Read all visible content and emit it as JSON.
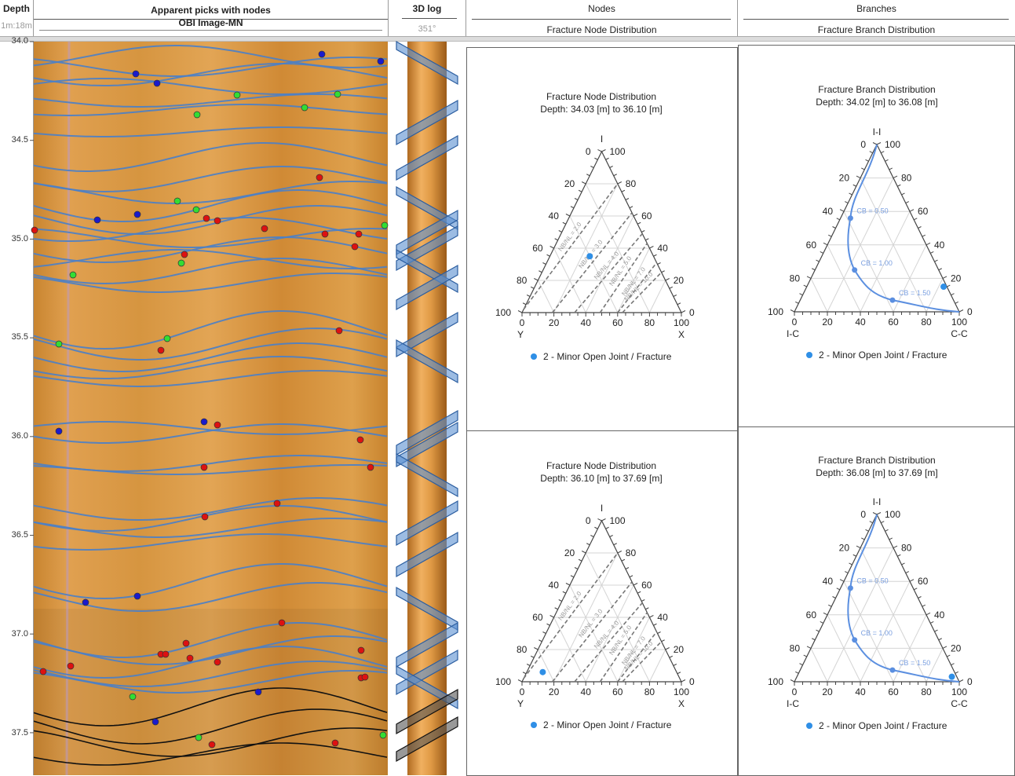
{
  "header": {
    "depth": "Depth",
    "scale": "1m:18m",
    "image_title": "Apparent picks with nodes",
    "image_sub": "OBI Image-MN",
    "log3d": "3D log",
    "azimuth": "351°",
    "nodes": "Nodes",
    "nodes_sub": "Fracture Node Distribution",
    "branches": "Branches",
    "branches_sub": "Fracture Branch Distribution"
  },
  "depth_ticks": [
    "34.0",
    "34.5",
    "35.0",
    "35.5",
    "36.0",
    "36.5",
    "37.0",
    "37.5"
  ],
  "tick_labels": [
    "0",
    "20",
    "40",
    "60",
    "80",
    "100"
  ],
  "node_axes": {
    "top": "I",
    "left": "Y",
    "right": "X"
  },
  "branch_axes": {
    "top": "I-I",
    "left": "I-C",
    "right": "C-C"
  },
  "node_ratio_lines": [
    {
      "label": "NB/NL = 2.0",
      "from": {
        "top": 2,
        "right": 0
      },
      "to": {
        "top": 80,
        "right": 20
      }
    },
    {
      "label": "NB/NL = 3.0",
      "from": {
        "top": 0,
        "right": 19
      },
      "to": {
        "top": 62,
        "right": 38
      }
    },
    {
      "label": "NB/NL = 4.0",
      "from": {
        "top": 0,
        "right": 33
      },
      "to": {
        "top": 49,
        "right": 51
      }
    },
    {
      "label": "NB/NL = 5.0",
      "from": {
        "top": 0,
        "right": 49
      },
      "to": {
        "top": 43,
        "right": 57
      }
    },
    {
      "label": "NB/NL = 7.0",
      "from": {
        "top": 0,
        "right": 60
      },
      "to": {
        "top": 31,
        "right": 69
      }
    },
    {
      "label": "NB/NL = 10.0",
      "from": {
        "top": 0,
        "right": 63
      },
      "to": {
        "top": 25,
        "right": 75
      }
    }
  ],
  "cb_curve": [
    {
      "top": 100,
      "right": 0
    },
    {
      "top": 56,
      "right": 6,
      "label": "CB = 0.50"
    },
    {
      "top": 25,
      "right": 24,
      "label": "CB = 1.00"
    },
    {
      "top": 7,
      "right": 56,
      "label": "CB = 1.50"
    },
    {
      "top": 0,
      "right": 100
    }
  ],
  "node_charts": [
    {
      "title": "Fracture Node Distribution",
      "depth": "Depth: 34.03 [m] to 36.10 [m]",
      "legend": "2 - Minor Open Joint / Fracture",
      "points": [
        {
          "I": 35,
          "X": 25,
          "Y": 40
        }
      ]
    },
    {
      "title": "Fracture Node Distribution",
      "depth": "Depth: 36.10 [m] to 37.69 [m]",
      "legend": "2 - Minor Open Joint / Fracture",
      "points": [
        {
          "I": 6,
          "X": 10,
          "Y": 84
        }
      ]
    }
  ],
  "branch_charts": [
    {
      "title": "Fracture Branch Distribution",
      "depth": "Depth: 34.02 [m] to 36.08 [m]",
      "legend": "2 - Minor Open Joint / Fracture",
      "points": [
        {
          "II": 15,
          "CC": 83,
          "IC": 2
        }
      ]
    },
    {
      "title": "Fracture Branch Distribution",
      "depth": "Depth: 36.08 [m] to 37.69 [m]",
      "legend": "2 - Minor Open Joint / Fracture",
      "points": [
        {
          "II": 3,
          "CC": 94,
          "IC": 3
        }
      ]
    }
  ],
  "colors": {
    "point": "#2f8fe6",
    "curve": "#5b8fe0",
    "sine": "#4a7fc8",
    "node_blue": "#1a1acc",
    "node_green": "#33dd33",
    "node_red": "#dd1111",
    "rock": "#d9953a"
  }
}
